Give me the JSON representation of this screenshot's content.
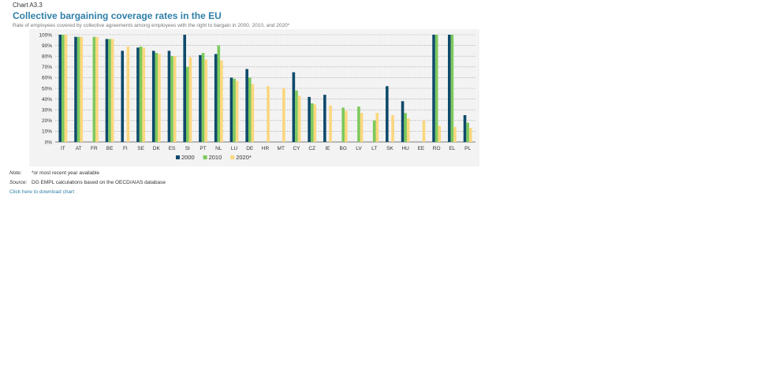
{
  "header": {
    "chart_label": "Chart A3.3",
    "title": "Collective bargaining coverage rates in the EU",
    "subtitle": "Rate of employees covered by collective agreements among employees with the right to bargain in 2000, 2010, and 2020*"
  },
  "chart_data": {
    "type": "bar",
    "title": "Collective bargaining coverage rates in the EU",
    "subtitle": "Rate of employees covered by collective agreements among employees with the right to bargain in 2000, 2010, and 2020*",
    "xlabel": "",
    "ylabel": "",
    "ylim": [
      0,
      100
    ],
    "ytick_labels": [
      "0%",
      "10%",
      "20%",
      "30%",
      "40%",
      "50%",
      "60%",
      "70%",
      "80%",
      "90%",
      "100%"
    ],
    "grid": true,
    "legend_position": "bottom-center",
    "categories": [
      "IT",
      "AT",
      "FR",
      "BE",
      "FI",
      "SE",
      "DK",
      "ES",
      "SI",
      "PT",
      "NL",
      "LU",
      "DE",
      "HR",
      "MT",
      "CY",
      "CZ",
      "IE",
      "BG",
      "LV",
      "LT",
      "SK",
      "HU",
      "EE",
      "RO",
      "EL",
      "PL"
    ],
    "series": [
      {
        "name": "2000",
        "color": "#0e4a6b",
        "values": [
          100,
          98,
          null,
          96,
          85,
          88,
          85,
          85,
          100,
          81,
          82,
          60,
          68,
          null,
          null,
          65,
          42,
          44,
          null,
          null,
          null,
          52,
          38,
          null,
          100,
          100,
          25
        ]
      },
      {
        "name": "2010",
        "color": "#7cc95c",
        "values": [
          100,
          98,
          98,
          96,
          null,
          89,
          83,
          80,
          70,
          83,
          90,
          59,
          60,
          null,
          null,
          48,
          36,
          null,
          32,
          33,
          20,
          null,
          27,
          null,
          100,
          100,
          18
        ]
      },
      {
        "name": "2020*",
        "color": "#fbd77d",
        "values": [
          100,
          98,
          98,
          96,
          89,
          88,
          82,
          80,
          79,
          77,
          76,
          57,
          54,
          52,
          50,
          43,
          35,
          34,
          29,
          27,
          27,
          25,
          22,
          20,
          15,
          14,
          13
        ]
      }
    ]
  },
  "footer": {
    "note_label": "Note:",
    "note_text": "*or most recent year available",
    "source_label": "Source:",
    "source_text": "DG EMPL calculations based on the OECD/AIAS database",
    "download_link": "Click here to download chart"
  }
}
